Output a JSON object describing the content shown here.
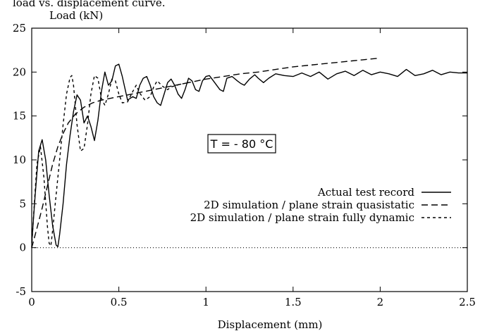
{
  "caption_fragment": "load vs. displacement curve.",
  "chart_data": {
    "type": "line",
    "title": "",
    "xlabel": "Displacement (mm)",
    "ylabel": "Load (kN)",
    "xlim": [
      0,
      2.5
    ],
    "ylim": [
      -5,
      25
    ],
    "xticks": [
      {
        "value": 0,
        "label": "0"
      },
      {
        "value": 0.5,
        "label": "0.5"
      },
      {
        "value": 1,
        "label": "1"
      },
      {
        "value": 1.5,
        "label": "1.5"
      },
      {
        "value": 2,
        "label": "2"
      },
      {
        "value": 2.5,
        "label": "2.5"
      }
    ],
    "yticks": [
      {
        "value": -5,
        "label": "-5"
      },
      {
        "value": 0,
        "label": "0"
      },
      {
        "value": 5,
        "label": "5"
      },
      {
        "value": 10,
        "label": "10"
      },
      {
        "value": 15,
        "label": "15"
      },
      {
        "value": 20,
        "label": "20"
      },
      {
        "value": 25,
        "label": "25"
      }
    ],
    "grid": false,
    "legend_position": "lower-right",
    "annotation": "T = - 80 °C",
    "zero_line": {
      "y": 0,
      "style": "dotted"
    },
    "series": [
      {
        "name": "Actual test record",
        "style": "solid",
        "x": [
          0,
          0.02,
          0.04,
          0.06,
          0.08,
          0.1,
          0.12,
          0.14,
          0.15,
          0.16,
          0.18,
          0.2,
          0.22,
          0.24,
          0.26,
          0.28,
          0.3,
          0.32,
          0.34,
          0.36,
          0.38,
          0.4,
          0.42,
          0.44,
          0.46,
          0.48,
          0.5,
          0.52,
          0.55,
          0.58,
          0.6,
          0.62,
          0.64,
          0.66,
          0.68,
          0.7,
          0.72,
          0.74,
          0.76,
          0.78,
          0.8,
          0.82,
          0.84,
          0.86,
          0.88,
          0.9,
          0.92,
          0.94,
          0.96,
          0.98,
          1.0,
          1.02,
          1.05,
          1.08,
          1.1,
          1.12,
          1.15,
          1.18,
          1.2,
          1.22,
          1.25,
          1.28,
          1.3,
          1.33,
          1.36,
          1.4,
          1.45,
          1.5,
          1.55,
          1.6,
          1.65,
          1.7,
          1.75,
          1.8,
          1.85,
          1.9,
          1.95,
          2.0,
          2.05,
          2.1,
          2.15,
          2.2,
          2.25,
          2.3,
          2.35,
          2.4,
          2.45,
          2.5
        ],
        "y": [
          0.5,
          6.0,
          11.0,
          12.3,
          10.0,
          6.0,
          2.5,
          0.3,
          0.1,
          1.5,
          5.0,
          9.5,
          12.8,
          15.5,
          17.4,
          16.8,
          14.2,
          15.0,
          13.8,
          12.2,
          14.5,
          17.8,
          20.0,
          18.5,
          19.0,
          20.7,
          20.9,
          19.5,
          16.8,
          17.2,
          17.0,
          18.5,
          19.3,
          19.5,
          18.5,
          17.2,
          16.5,
          16.2,
          17.5,
          18.8,
          19.2,
          18.5,
          17.5,
          17.0,
          18.0,
          19.3,
          19.0,
          18.0,
          17.8,
          19.0,
          19.5,
          19.6,
          18.8,
          18.0,
          17.8,
          19.3,
          19.5,
          19.0,
          18.7,
          18.5,
          19.2,
          19.7,
          19.3,
          18.8,
          19.3,
          19.8,
          19.6,
          19.5,
          19.9,
          19.5,
          20.0,
          19.2,
          19.8,
          20.1,
          19.6,
          20.2,
          19.7,
          20.0,
          19.8,
          19.5,
          20.3,
          19.6,
          19.8,
          20.2,
          19.7,
          20.0,
          19.9,
          19.9
        ]
      },
      {
        "name": "2D simulation / plane strain quasistatic",
        "style": "long-dash",
        "x": [
          0,
          0.03,
          0.06,
          0.09,
          0.12,
          0.15,
          0.18,
          0.21,
          0.25,
          0.3,
          0.35,
          0.4,
          0.5,
          0.6,
          0.7,
          0.8,
          0.9,
          1.0,
          1.1,
          1.2,
          1.3,
          1.4,
          1.5,
          1.6,
          1.7,
          1.8,
          1.9,
          2.0
        ],
        "y": [
          0,
          2.2,
          4.5,
          7.0,
          9.5,
          11.5,
          13.0,
          14.2,
          15.2,
          16.0,
          16.5,
          16.8,
          17.2,
          17.6,
          18.0,
          18.4,
          18.8,
          19.2,
          19.5,
          19.8,
          20.0,
          20.3,
          20.6,
          20.8,
          21.0,
          21.2,
          21.4,
          21.6
        ]
      },
      {
        "name": "2D simulation / plane strain fully dynamic",
        "style": "short-dash",
        "x": [
          0,
          0.01,
          0.02,
          0.03,
          0.05,
          0.07,
          0.09,
          0.1,
          0.11,
          0.12,
          0.14,
          0.16,
          0.18,
          0.2,
          0.22,
          0.23,
          0.24,
          0.26,
          0.28,
          0.3,
          0.32,
          0.34,
          0.36,
          0.38,
          0.4,
          0.42,
          0.44,
          0.46,
          0.48,
          0.5,
          0.52,
          0.55,
          0.58,
          0.6,
          0.62,
          0.65,
          0.68,
          0.7,
          0.72,
          0.75,
          0.78,
          0.8,
          0.85,
          0.9
        ],
        "y": [
          0,
          3.5,
          6.5,
          9.5,
          11.5,
          8.0,
          2.5,
          0.5,
          0.2,
          2.0,
          6.0,
          10.0,
          14.0,
          17.5,
          19.4,
          19.6,
          18.5,
          14.0,
          11.0,
          11.3,
          14.0,
          17.5,
          19.6,
          19.3,
          17.0,
          16.2,
          17.5,
          19.2,
          19.0,
          17.5,
          16.5,
          16.6,
          17.8,
          18.5,
          17.6,
          16.8,
          17.2,
          18.3,
          19.0,
          18.4,
          18.0,
          18.3,
          18.6,
          18.8
        ]
      }
    ]
  }
}
